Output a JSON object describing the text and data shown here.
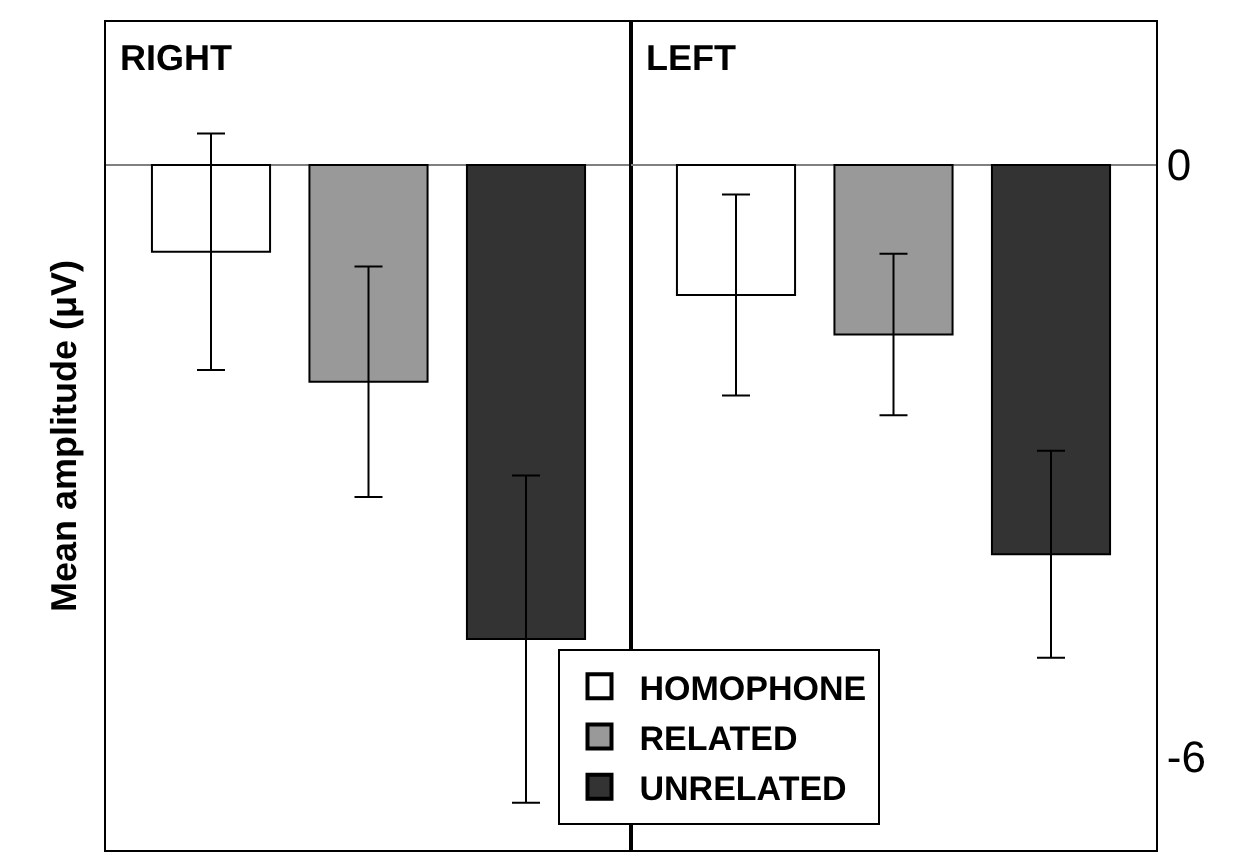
{
  "chart_data": [
    {
      "type": "bar",
      "title": "RIGHT",
      "ylabel": "Mean amplitude (μV)",
      "categories": [
        null
      ],
      "ylim": [
        -6.95,
        1.45
      ],
      "tick_labels": false,
      "legend": "bottom right",
      "series": [
        {
          "name": "HOMOPHONE",
          "color": "#ffffff",
          "values": [
            -0.88
          ],
          "errors": [
            1.2
          ]
        },
        {
          "name": "RELATED",
          "color": "#999999",
          "values": [
            -2.2
          ],
          "errors": [
            1.17
          ]
        },
        {
          "name": "UNRELATED",
          "color": "#333333",
          "values": [
            -4.81
          ],
          "errors": [
            1.66
          ]
        }
      ]
    },
    {
      "type": "bar",
      "title": "LEFT",
      "categories": [
        null
      ],
      "ylim": [
        -6.95,
        1.45
      ],
      "yticks": [
        0,
        -6
      ],
      "tick_labels": "y",
      "series": [
        {
          "color": "#ffffff",
          "values": [
            -1.32
          ],
          "errors": [
            1.02
          ]
        },
        {
          "color": "#999999",
          "values": [
            -1.72
          ],
          "errors": [
            0.82
          ]
        },
        {
          "color": "#333333",
          "values": [
            -3.95
          ],
          "errors": [
            1.05
          ]
        }
      ]
    }
  ]
}
